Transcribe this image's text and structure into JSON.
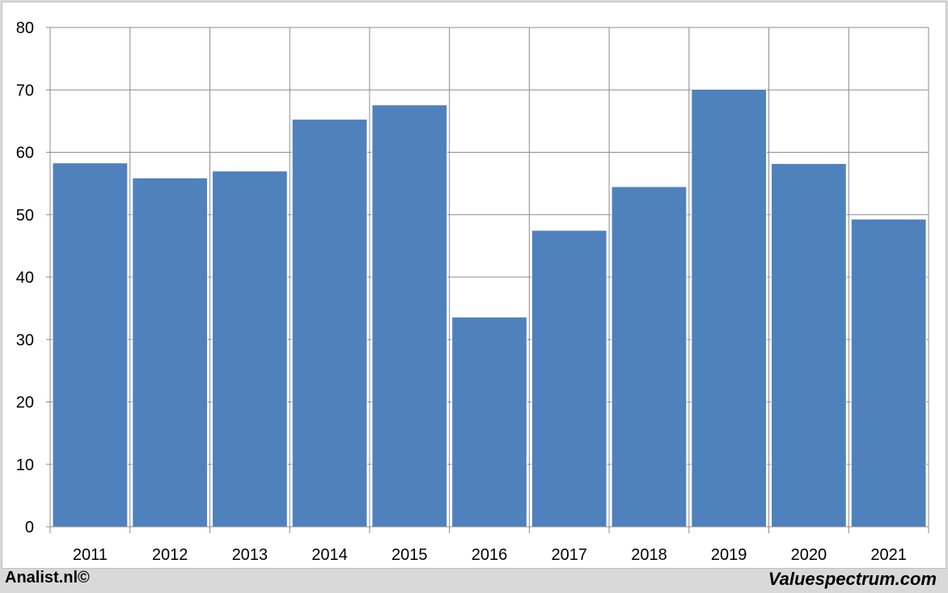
{
  "chart_data": {
    "type": "bar",
    "title": "",
    "xlabel": "",
    "ylabel": "",
    "categories": [
      "2011",
      "2012",
      "2013",
      "2014",
      "2015",
      "2016",
      "2017",
      "2018",
      "2019",
      "2020",
      "2021"
    ],
    "values": [
      58.3,
      55.9,
      57.0,
      65.3,
      67.6,
      33.6,
      47.5,
      54.5,
      70.1,
      58.2,
      49.3
    ],
    "ylim": [
      0,
      80
    ],
    "yticks": [
      0,
      10,
      20,
      30,
      40,
      50,
      60,
      70,
      80
    ],
    "grid": true,
    "bar_color": "#4f81bd",
    "grid_color": "#8c8c8c"
  },
  "footer": {
    "left_text": "Analist.nl©",
    "right_text": "Valuespectrum.com"
  }
}
